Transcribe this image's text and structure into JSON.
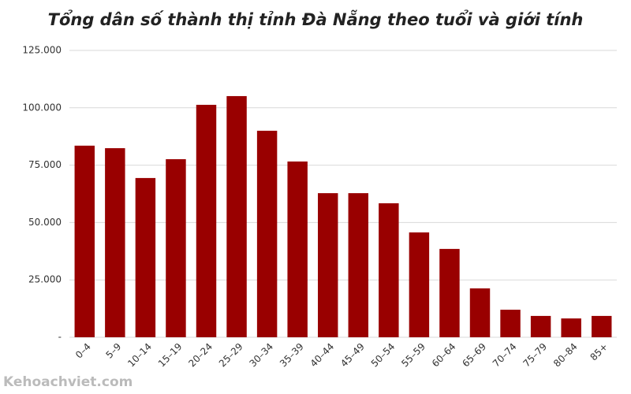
{
  "chart_data": {
    "type": "bar",
    "title": "Tổng dân số thành thị tỉnh Đà Nẵng theo tuổi và giới tính",
    "categories": [
      "0–4",
      "5–9",
      "10–14",
      "15–19",
      "20–24",
      "25–29",
      "30–34",
      "35–39",
      "40–44",
      "45–49",
      "50–54",
      "55–59",
      "60–64",
      "65–69",
      "70–74",
      "75–79",
      "80–84",
      "85+"
    ],
    "values": [
      83500,
      82400,
      69400,
      77600,
      101300,
      105100,
      90000,
      76600,
      62800,
      62800,
      58400,
      45700,
      38500,
      21300,
      12000,
      9300,
      8200,
      9300
    ],
    "color": "#990000",
    "ylim": [
      0,
      125000
    ],
    "yticks": [
      {
        "value": 0,
        "label": "-"
      },
      {
        "value": 25000,
        "label": "25.000"
      },
      {
        "value": 50000,
        "label": "50.000"
      },
      {
        "value": 75000,
        "label": "75.000"
      },
      {
        "value": 100000,
        "label": "100.000"
      },
      {
        "value": 125000,
        "label": "125.000"
      }
    ],
    "grid": true,
    "watermark": "Kehoachviet.com"
  }
}
